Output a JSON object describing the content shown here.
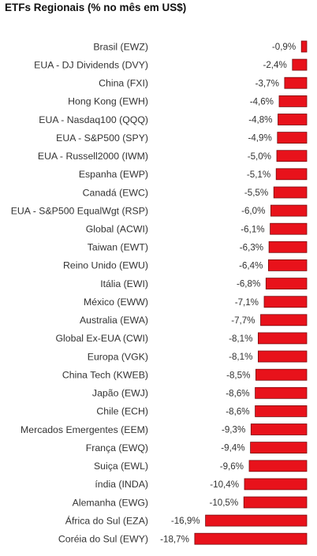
{
  "chart_data": {
    "type": "bar",
    "orientation": "horizontal",
    "title": "ETFs Regionais (% no mês em US$)",
    "xlabel": "",
    "ylabel": "",
    "bar_color": "#e8121b",
    "bar_border_color": "#7a0a0e",
    "xlim": [
      -18.7,
      0
    ],
    "grid": false,
    "legend": "none",
    "categories": [
      "Brasil (EWZ)",
      "EUA - DJ Dividends (DVY)",
      "China (FXI)",
      "Hong Kong (EWH)",
      "EUA - Nasdaq100 (QQQ)",
      "EUA - S&P500 (SPY)",
      "EUA - Russell2000 (IWM)",
      "Espanha (EWP)",
      "Canadá (EWC)",
      "EUA - S&P500 EqualWgt (RSP)",
      "Global (ACWI)",
      "Taiwan (EWT)",
      "Reino Unido (EWU)",
      "Itália (EWI)",
      "México (EWW)",
      "Australia (EWA)",
      "Global Ex-EUA (CWI)",
      "Europa (VGK)",
      "China Tech (KWEB)",
      "Japão (EWJ)",
      "Chile (ECH)",
      "Mercados Emergentes (EEM)",
      "França (EWQ)",
      "Suiça (EWL)",
      "índia (INDA)",
      "Alemanha (EWG)",
      "África do Sul (EZA)",
      "Coréia do Sul (EWY)"
    ],
    "values": [
      -0.9,
      -2.4,
      -3.7,
      -4.6,
      -4.8,
      -4.9,
      -5.0,
      -5.1,
      -5.5,
      -6.0,
      -6.1,
      -6.3,
      -6.4,
      -6.8,
      -7.1,
      -7.7,
      -8.1,
      -8.1,
      -8.5,
      -8.6,
      -8.6,
      -9.3,
      -9.4,
      -9.6,
      -10.4,
      -10.5,
      -16.9,
      -18.7
    ],
    "value_labels": [
      "-0,9%",
      "-2,4%",
      "-3,7%",
      "-4,6%",
      "-4,8%",
      "-4,9%",
      "-5,0%",
      "-5,1%",
      "-5,5%",
      "-6,0%",
      "-6,1%",
      "-6,3%",
      "-6,4%",
      "-6,8%",
      "-7,1%",
      "-7,7%",
      "-8,1%",
      "-8,1%",
      "-8,5%",
      "-8,6%",
      "-8,6%",
      "-9,3%",
      "-9,4%",
      "-9,6%",
      "-10,4%",
      "-10,5%",
      "-16,9%",
      "-18,7%"
    ]
  }
}
